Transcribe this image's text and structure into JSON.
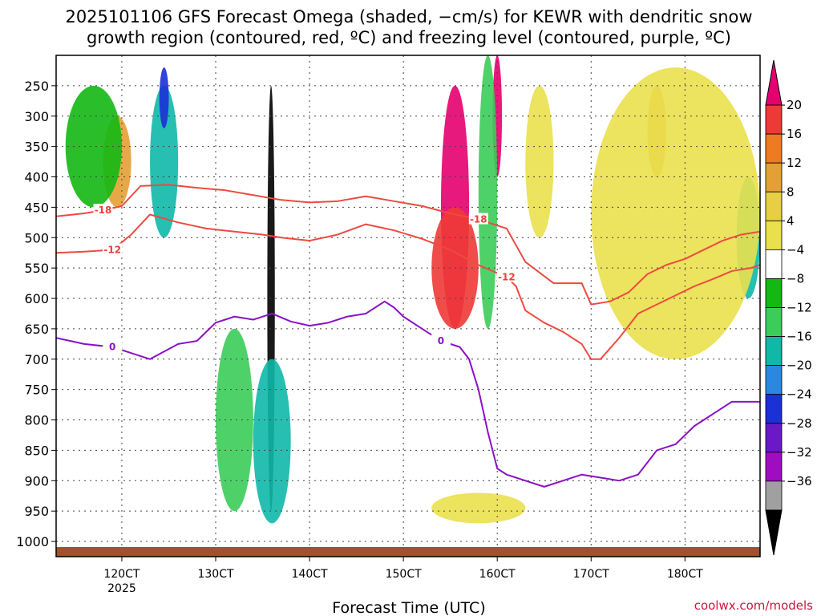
{
  "chart_data": {
    "type": "heatmap",
    "title_line1": "2025101106 GFS Forecast Omega (shaded, −cm/s) for KEWR with dendritic snow",
    "title_line2": "growth region (contoured, red, ºC) and freezing level (contoured, purple, ºC)",
    "xlabel": "Forecast Time (UTC)",
    "credit": "coolwx.com/models",
    "x_range": [
      113,
      188
    ],
    "y_range": [
      200,
      1025
    ],
    "x_ticks": [
      {
        "v": 120,
        "label": "120CT"
      },
      {
        "v": 130,
        "label": "130CT"
      },
      {
        "v": 140,
        "label": "140CT"
      },
      {
        "v": 150,
        "label": "150CT"
      },
      {
        "v": 160,
        "label": "160CT"
      },
      {
        "v": 170,
        "label": "170CT"
      },
      {
        "v": 180,
        "label": "180CT"
      }
    ],
    "x_sub_label": {
      "v": 120,
      "label": "2025"
    },
    "y_ticks": [
      250,
      300,
      350,
      400,
      450,
      500,
      550,
      600,
      650,
      700,
      750,
      800,
      850,
      900,
      950,
      1000
    ],
    "colorbar": {
      "labels": [
        "20",
        "16",
        "12",
        "8",
        "4",
        "−4",
        "−8",
        "−12",
        "−16",
        "−20",
        "−24",
        "−28",
        "−32",
        "−36"
      ],
      "colors": [
        "#e4006e",
        "#ee3a36",
        "#ee7a22",
        "#e4a034",
        "#e8ce42",
        "#eae04c",
        "#ffffff",
        "#13b813",
        "#3ccc5a",
        "#10b8a8",
        "#2a88e0",
        "#1c30d8",
        "#6a18c8",
        "#a00cc0",
        "#a0a0a0",
        "#000000"
      ]
    },
    "omega_regions": [
      {
        "x": [
          154,
          157
        ],
        "p": [
          250,
          650
        ],
        "v": 20,
        "c": "#e4006e"
      },
      {
        "x": [
          153,
          158
        ],
        "p": [
          450,
          650
        ],
        "v": 16,
        "c": "#ee3a36"
      },
      {
        "x": [
          159.5,
          160.5
        ],
        "p": [
          200,
          400
        ],
        "v": 20,
        "c": "#e4006e"
      },
      {
        "x": [
          118,
          121
        ],
        "p": [
          300,
          450
        ],
        "v": 8,
        "c": "#e4a034"
      },
      {
        "x": [
          176,
          178
        ],
        "p": [
          250,
          400
        ],
        "v": 8,
        "c": "#e4a034"
      },
      {
        "x": [
          123,
          126
        ],
        "p": [
          250,
          500
        ],
        "v": -12,
        "c": "#10b8a8"
      },
      {
        "x": [
          124,
          125
        ],
        "p": [
          220,
          320
        ],
        "v": -24,
        "c": "#1c30d8"
      },
      {
        "x": [
          135.5,
          136.3
        ],
        "p": [
          250,
          950
        ],
        "v": -36,
        "c": "#000000"
      },
      {
        "x": [
          134,
          138
        ],
        "p": [
          700,
          970
        ],
        "v": -12,
        "c": "#10b8a8"
      },
      {
        "x": [
          130,
          134
        ],
        "p": [
          650,
          950
        ],
        "v": -8,
        "c": "#3ccc5a"
      },
      {
        "x": [
          158,
          160
        ],
        "p": [
          200,
          650
        ],
        "v": -8,
        "c": "#3ccc5a"
      },
      {
        "x": [
          185.5,
          188
        ],
        "p": [
          400,
          600
        ],
        "v": -12,
        "c": "#10b8a8"
      },
      {
        "x": [
          114,
          120
        ],
        "p": [
          250,
          450
        ],
        "v": -4,
        "c": "#13b813"
      },
      {
        "x": [
          163,
          166
        ],
        "p": [
          250,
          500
        ],
        "v": 4,
        "c": "#eae04c"
      },
      {
        "x": [
          170,
          188
        ],
        "p": [
          220,
          700
        ],
        "v": 4,
        "c": "#eae04c"
      },
      {
        "x": [
          153,
          163
        ],
        "p": [
          920,
          970
        ],
        "v": 4,
        "c": "#eae04c"
      }
    ],
    "contours": [
      {
        "name": "-18 °C",
        "color": "#ee4a40",
        "label": "-18",
        "x": [
          113,
          116,
          118,
          120,
          122,
          125,
          128,
          131,
          134,
          137,
          140,
          143,
          146,
          149,
          152,
          155,
          158,
          161,
          163,
          166,
          168,
          169,
          170,
          172,
          174,
          176,
          178,
          180,
          182,
          184,
          186,
          188
        ],
        "p": [
          465,
          460,
          455,
          448,
          415,
          413,
          418,
          422,
          430,
          438,
          442,
          440,
          432,
          440,
          448,
          460,
          470,
          485,
          540,
          575,
          575,
          575,
          610,
          605,
          590,
          560,
          545,
          535,
          520,
          505,
          495,
          490
        ]
      },
      {
        "name": "-12 °C",
        "color": "#ee4a40",
        "label": "-12",
        "x": [
          113,
          116,
          119,
          121,
          123,
          126,
          129,
          132,
          135,
          137,
          140,
          143,
          146,
          149,
          152,
          155,
          158,
          161,
          162,
          163,
          165,
          167,
          169,
          170,
          171,
          173,
          175,
          177,
          179,
          181,
          183,
          185,
          187,
          188
        ],
        "p": [
          525,
          523,
          520,
          495,
          462,
          475,
          485,
          490,
          495,
          500,
          505,
          495,
          478,
          488,
          502,
          520,
          545,
          565,
          580,
          620,
          640,
          655,
          675,
          700,
          700,
          665,
          625,
          610,
          595,
          580,
          568,
          555,
          550,
          545
        ]
      },
      {
        "name": "0 °C (freezing level)",
        "color": "#8a10c8",
        "label": "0",
        "x": [
          113,
          116,
          119,
          121,
          123,
          126,
          128,
          130,
          132,
          134,
          136,
          138,
          140,
          142,
          144,
          146,
          148,
          149,
          150,
          152,
          154,
          156,
          157,
          158,
          159,
          160,
          161,
          163,
          165,
          167,
          169,
          171,
          173,
          175,
          177,
          179,
          181,
          183,
          185,
          188
        ],
        "p": [
          665,
          675,
          680,
          690,
          700,
          675,
          670,
          640,
          630,
          635,
          625,
          638,
          645,
          640,
          630,
          625,
          605,
          615,
          630,
          650,
          670,
          680,
          700,
          750,
          820,
          880,
          890,
          900,
          910,
          900,
          890,
          895,
          900,
          890,
          850,
          840,
          810,
          790,
          770,
          770
        ]
      }
    ]
  }
}
